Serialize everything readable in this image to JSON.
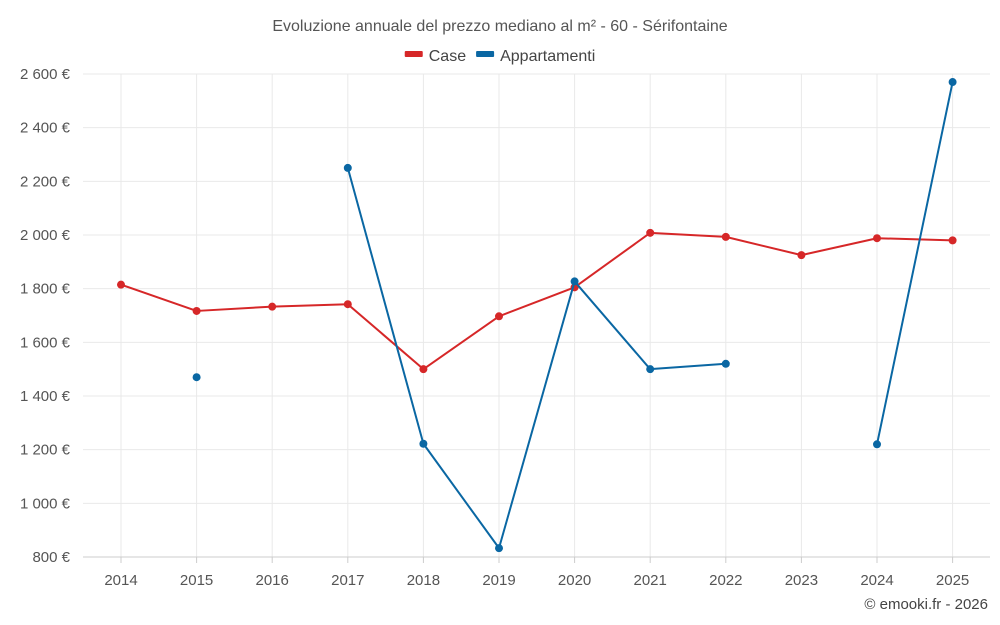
{
  "chart_data": {
    "type": "line",
    "title": "Evoluzione annuale del prezzo mediano al m² - 60 - Sérifontaine",
    "xlabel": "",
    "ylabel": "",
    "categories": [
      "2014",
      "2015",
      "2016",
      "2017",
      "2018",
      "2019",
      "2020",
      "2021",
      "2022",
      "2023",
      "2024",
      "2025"
    ],
    "ylim": [
      800,
      2600
    ],
    "yticks": [
      800,
      1000,
      1200,
      1400,
      1600,
      1800,
      2000,
      2200,
      2400,
      2600
    ],
    "ytick_labels": [
      "800 €",
      "1 000 €",
      "1 200 €",
      "1 400 €",
      "1 600 €",
      "1 800 €",
      "2 000 €",
      "2 200 €",
      "2 400 €",
      "2 600 €"
    ],
    "grid": true,
    "legend_position": "top-center",
    "series": [
      {
        "name": "Case",
        "color": "#d62728",
        "values": [
          1815,
          1717,
          1733,
          1742,
          1500,
          1697,
          1805,
          2008,
          1993,
          1925,
          1988,
          1980
        ]
      },
      {
        "name": "Appartamenti",
        "color": "#0a67a3",
        "values": [
          null,
          1470,
          null,
          2250,
          1222,
          833,
          1827,
          1500,
          1520,
          null,
          1220,
          2570
        ]
      }
    ]
  },
  "credit": "© emooki.fr - 2026"
}
